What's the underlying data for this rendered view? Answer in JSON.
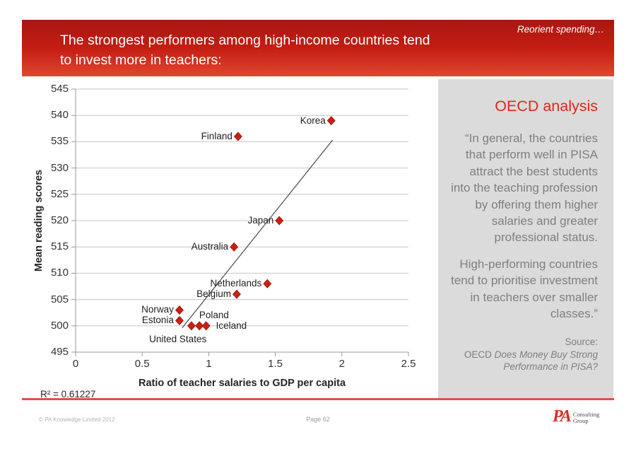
{
  "header": {
    "kicker": "Reorient spending…",
    "title_lines": [
      "The strongest performers among high-income countries tend",
      "to invest more in teachers:"
    ]
  },
  "chart_data": {
    "type": "scatter",
    "xlabel": "Ratio of teacher salaries to GDP per capita",
    "ylabel": "Mean reading scores",
    "xlim": [
      0,
      2.5
    ],
    "ylim": [
      495,
      545
    ],
    "xticks": [
      "0",
      "0.5",
      "1",
      "1.5",
      "2",
      "2.5"
    ],
    "yticks": [
      495,
      500,
      505,
      510,
      515,
      520,
      525,
      530,
      535,
      540,
      545
    ],
    "grid": "horizontal",
    "r_squared_label": "R² = 0.61227",
    "marker_color": "#cc1f12",
    "marker_shape": "diamond",
    "points": [
      {
        "label": "Korea",
        "x": 1.92,
        "y": 539,
        "label_pos": "left"
      },
      {
        "label": "Finland",
        "x": 1.22,
        "y": 536,
        "label_pos": "left"
      },
      {
        "label": "Japan",
        "x": 1.53,
        "y": 520,
        "label_pos": "left"
      },
      {
        "label": "Australia",
        "x": 1.19,
        "y": 515,
        "label_pos": "left"
      },
      {
        "label": "Netherlands",
        "x": 1.44,
        "y": 508,
        "label_pos": "left"
      },
      {
        "label": "Belgium",
        "x": 1.21,
        "y": 506,
        "label_pos": "left"
      },
      {
        "label": "Norway",
        "x": 0.78,
        "y": 503,
        "label_pos": "left"
      },
      {
        "label": "Estonia",
        "x": 0.78,
        "y": 501,
        "label_pos": "left"
      },
      {
        "label": "Poland",
        "x": 0.87,
        "y": 500,
        "label_pos": "above-right"
      },
      {
        "label": "United States",
        "x": 0.93,
        "y": 500,
        "label_pos": "below"
      },
      {
        "label": "Iceland",
        "x": 0.98,
        "y": 500,
        "label_pos": "right"
      }
    ],
    "trendline": {
      "x1": 0.8,
      "y1": 499.6,
      "x2": 1.93,
      "y2": 535.3
    }
  },
  "sidebar": {
    "title": "OECD analysis",
    "quote_p1": "“In general, the countries that perform well in PISA attract the best students into the teaching profession by offering them higher salaries and greater professional status.",
    "quote_p2": "High-performing countries tend to prioritise investment in teachers over smaller classes.”",
    "source_label": "Source:",
    "source_prefix": "OECD ",
    "source_title": "Does Money Buy Strong Performance in PISA?"
  },
  "footer": {
    "copyright": "© PA Knowledge Limited 2012",
    "page_label": "Page 62",
    "logo_text": "PA",
    "logo_sub1": "Consulting",
    "logo_sub2": "Group"
  },
  "colors": {
    "banner_red_top": "#a81711",
    "banner_red_bottom": "#e04731",
    "accent_red": "#e4251c",
    "sidebar_bg": "#dbdbdb",
    "quote_gray": "#7f7f7f",
    "marker_red": "#cc1f12",
    "divider_red": "#dc5149",
    "gridline_gray": "#c6c6c6",
    "axis_gray": "#999999"
  }
}
